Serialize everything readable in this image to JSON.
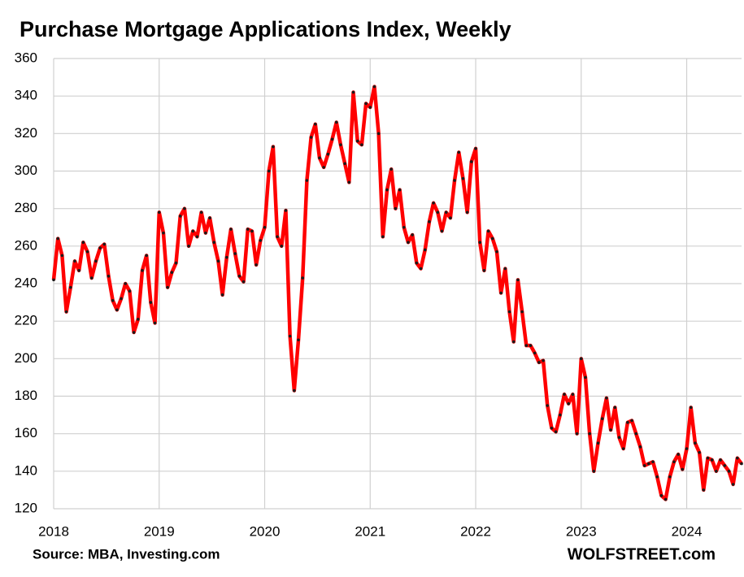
{
  "chart_data": {
    "type": "line",
    "title": "Purchase Mortgage Applications Index, Weekly",
    "source": "Source: MBA, Investing.com",
    "credit": "WOLFSTREET.com",
    "xlim": [
      2018,
      2024.52
    ],
    "xticks": [
      2018,
      2019,
      2020,
      2021,
      2022,
      2023,
      2024
    ],
    "ylim": [
      120,
      360
    ],
    "yticks": [
      120,
      140,
      160,
      180,
      200,
      220,
      240,
      260,
      280,
      300,
      320,
      340,
      360
    ],
    "grid": true,
    "x": [
      2018.0,
      2018.04,
      2018.08,
      2018.12,
      2018.16,
      2018.2,
      2018.24,
      2018.28,
      2018.32,
      2018.36,
      2018.4,
      2018.44,
      2018.48,
      2018.52,
      2018.56,
      2018.6,
      2018.64,
      2018.68,
      2018.72,
      2018.76,
      2018.8,
      2018.84,
      2018.88,
      2018.92,
      2018.96,
      2019.0,
      2019.04,
      2019.08,
      2019.12,
      2019.16,
      2019.2,
      2019.24,
      2019.28,
      2019.32,
      2019.36,
      2019.4,
      2019.44,
      2019.48,
      2019.52,
      2019.56,
      2019.6,
      2019.64,
      2019.68,
      2019.72,
      2019.76,
      2019.8,
      2019.84,
      2019.88,
      2019.92,
      2019.96,
      2020.0,
      2020.04,
      2020.08,
      2020.12,
      2020.16,
      2020.2,
      2020.24,
      2020.28,
      2020.32,
      2020.36,
      2020.4,
      2020.44,
      2020.48,
      2020.52,
      2020.56,
      2020.6,
      2020.64,
      2020.68,
      2020.72,
      2020.76,
      2020.8,
      2020.84,
      2020.88,
      2020.92,
      2020.96,
      2021.0,
      2021.04,
      2021.08,
      2021.12,
      2021.16,
      2021.2,
      2021.24,
      2021.28,
      2021.32,
      2021.36,
      2021.4,
      2021.44,
      2021.48,
      2021.52,
      2021.56,
      2021.6,
      2021.64,
      2021.68,
      2021.72,
      2021.76,
      2021.8,
      2021.84,
      2021.88,
      2021.92,
      2021.96,
      2022.0,
      2022.04,
      2022.08,
      2022.12,
      2022.16,
      2022.2,
      2022.24,
      2022.28,
      2022.32,
      2022.36,
      2022.4,
      2022.44,
      2022.48,
      2022.52,
      2022.56,
      2022.6,
      2022.64,
      2022.68,
      2022.72,
      2022.76,
      2022.8,
      2022.84,
      2022.88,
      2022.92,
      2022.96,
      2023.0,
      2023.04,
      2023.08,
      2023.12,
      2023.16,
      2023.2,
      2023.24,
      2023.28,
      2023.32,
      2023.36,
      2023.4,
      2023.44,
      2023.48,
      2023.52,
      2023.56,
      2023.6,
      2023.64,
      2023.68,
      2023.72,
      2023.76,
      2023.8,
      2023.84,
      2023.88,
      2023.92,
      2023.96,
      2024.0,
      2024.04,
      2024.08,
      2024.12,
      2024.16,
      2024.2,
      2024.24,
      2024.28,
      2024.32,
      2024.36,
      2024.4,
      2024.44,
      2024.48,
      2024.52
    ],
    "series": [
      {
        "name": "Purchase Mortgage Applications Index",
        "color": "#ff0000",
        "marker_color": "#1a1a1a",
        "values": [
          242,
          264,
          255,
          225,
          238,
          252,
          247,
          262,
          257,
          243,
          252,
          259,
          261,
          244,
          231,
          226,
          232,
          240,
          236,
          214,
          221,
          247,
          255,
          230,
          219,
          278,
          267,
          238,
          246,
          251,
          276,
          280,
          260,
          268,
          265,
          278,
          267,
          275,
          262,
          252,
          234,
          254,
          269,
          256,
          244,
          241,
          269,
          268,
          250,
          263,
          270,
          300,
          313,
          265,
          260,
          279,
          212,
          183,
          210,
          243,
          295,
          318,
          325,
          307,
          302,
          309,
          317,
          326,
          314,
          304,
          294,
          342,
          316,
          314,
          336,
          334,
          345,
          320,
          265,
          290,
          301,
          280,
          290,
          270,
          262,
          266,
          251,
          248,
          258,
          273,
          283,
          278,
          268,
          278,
          275,
          295,
          310,
          296,
          278,
          305,
          312,
          262,
          247,
          268,
          264,
          257,
          235,
          248,
          225,
          209,
          242,
          225,
          207,
          207,
          203,
          198,
          199,
          175,
          163,
          161,
          170,
          181,
          176,
          181,
          160,
          200,
          190,
          160,
          140,
          155,
          168,
          179,
          162,
          174,
          158,
          152,
          166,
          167,
          160,
          153,
          143,
          144,
          145,
          137,
          127,
          125,
          137,
          145,
          149,
          141,
          152,
          174,
          155,
          150,
          130,
          147,
          146,
          140,
          146,
          143,
          140,
          133,
          147,
          144
        ]
      }
    ]
  }
}
